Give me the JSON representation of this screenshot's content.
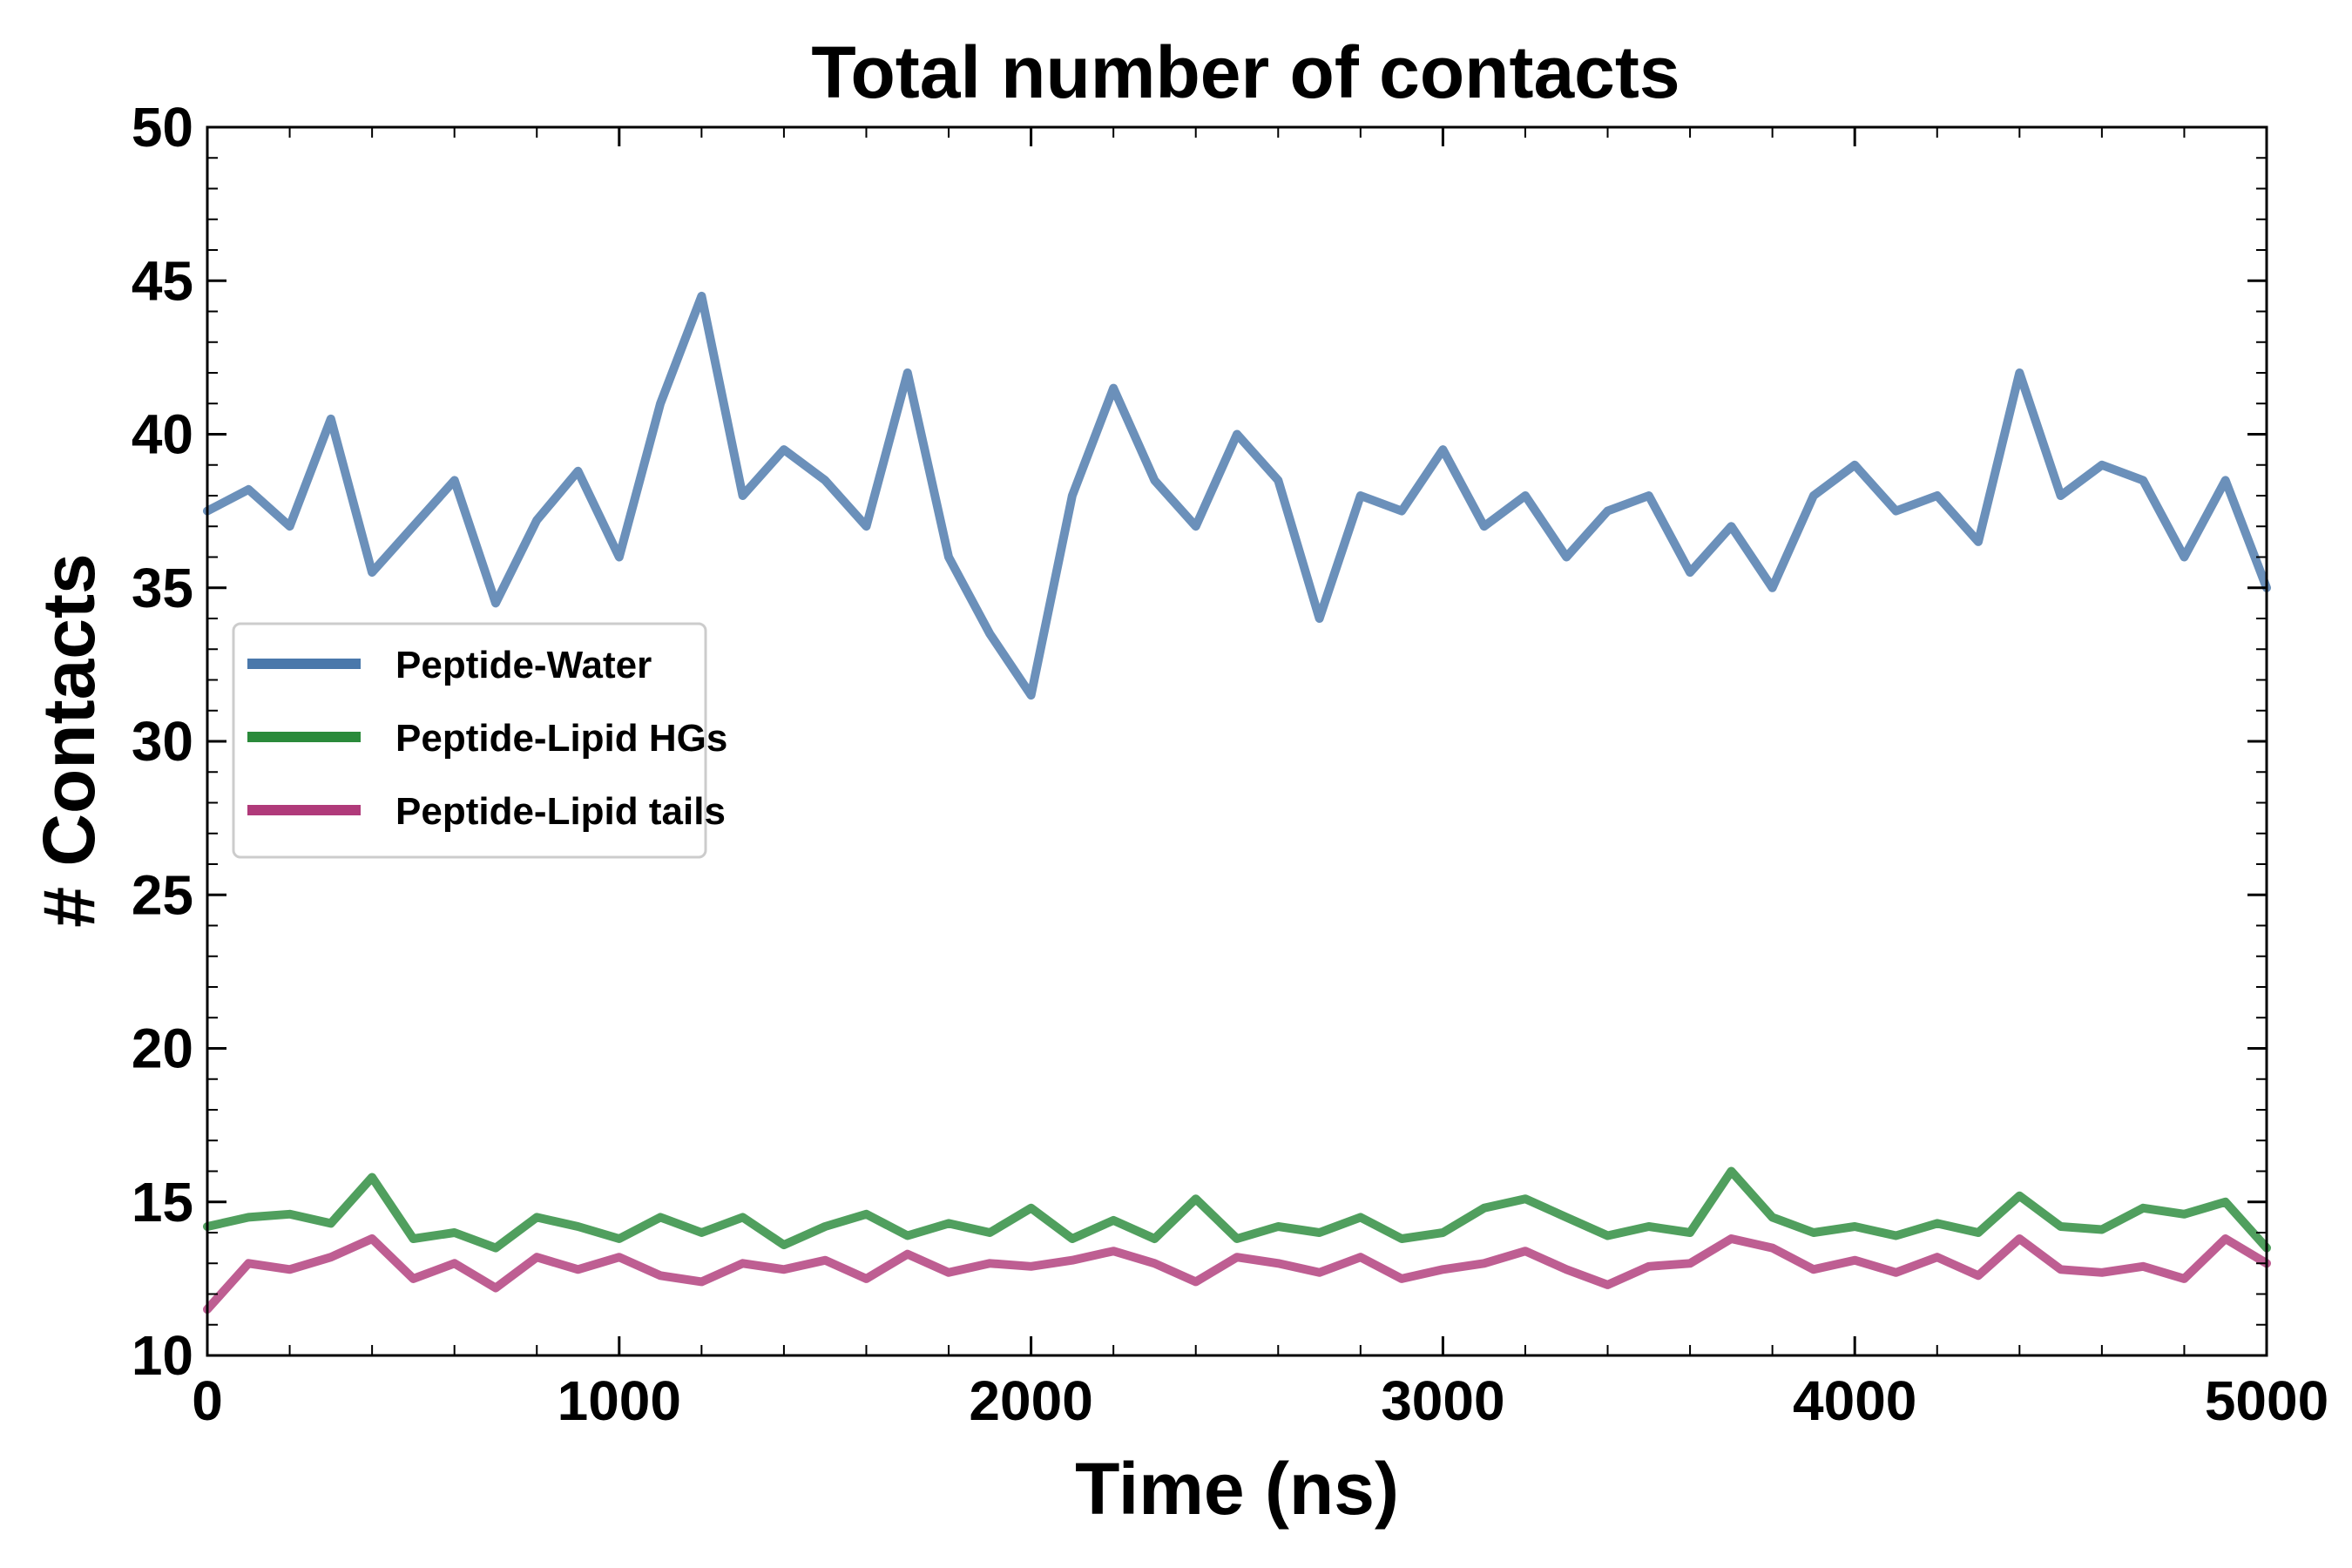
{
  "chart_data": {
    "type": "line",
    "title": "Total number of contacts",
    "xlabel": "Time (ns)",
    "ylabel": "# Contacts",
    "xlim": [
      0,
      5000
    ],
    "ylim": [
      10,
      50
    ],
    "x_ticks": [
      0,
      1000,
      2000,
      3000,
      4000,
      5000
    ],
    "y_ticks": [
      10,
      15,
      20,
      25,
      30,
      35,
      40,
      45,
      50
    ],
    "legend_position": "center-left",
    "x": [
      0,
      100,
      200,
      300,
      400,
      500,
      600,
      700,
      800,
      900,
      1000,
      1100,
      1200,
      1300,
      1400,
      1500,
      1600,
      1700,
      1800,
      1900,
      2000,
      2100,
      2200,
      2300,
      2400,
      2500,
      2600,
      2700,
      2800,
      2900,
      3000,
      3100,
      3200,
      3300,
      3400,
      3500,
      3600,
      3700,
      3800,
      3900,
      4000,
      4100,
      4200,
      4300,
      4400,
      4500,
      4600,
      4700,
      4800,
      4900,
      5000
    ],
    "series": [
      {
        "name": "Peptide-Water",
        "color": "#4a78ab",
        "values": [
          37.5,
          38.2,
          37.0,
          40.5,
          35.5,
          37.0,
          38.5,
          34.5,
          37.2,
          38.8,
          36.0,
          41.0,
          44.5,
          38.0,
          39.5,
          38.5,
          37.0,
          42.0,
          36.0,
          33.5,
          31.5,
          38.0,
          41.5,
          38.5,
          37.0,
          40.0,
          38.5,
          34.0,
          38.0,
          37.5,
          39.5,
          37.0,
          38.0,
          36.0,
          37.5,
          38.0,
          35.5,
          37.0,
          35.0,
          38.0,
          39.0,
          37.5,
          38.0,
          36.5,
          42.0,
          38.0,
          39.0,
          38.5,
          36.0,
          38.5,
          35.0
        ]
      },
      {
        "name": "Peptide-Lipid HGs",
        "color": "#2a8a3a",
        "values": [
          14.2,
          14.5,
          14.6,
          14.3,
          15.8,
          13.8,
          14.0,
          13.5,
          14.5,
          14.2,
          13.8,
          14.5,
          14.0,
          14.5,
          13.6,
          14.2,
          14.6,
          13.9,
          14.3,
          14.0,
          14.8,
          13.8,
          14.4,
          13.8,
          15.1,
          13.8,
          14.2,
          14.0,
          14.5,
          13.8,
          14.0,
          14.8,
          15.1,
          14.5,
          13.9,
          14.2,
          14.0,
          16.0,
          14.5,
          14.0,
          14.2,
          13.9,
          14.3,
          14.0,
          15.2,
          14.2,
          14.1,
          14.8,
          14.6,
          15.0,
          13.5
        ]
      },
      {
        "name": "Peptide-Lipid tails",
        "color": "#b03a7a",
        "values": [
          11.5,
          13.0,
          12.8,
          13.2,
          13.8,
          12.5,
          13.0,
          12.2,
          13.2,
          12.8,
          13.2,
          12.6,
          12.4,
          13.0,
          12.8,
          13.1,
          12.5,
          13.3,
          12.7,
          13.0,
          12.9,
          13.1,
          13.4,
          13.0,
          12.4,
          13.2,
          13.0,
          12.7,
          13.2,
          12.5,
          12.8,
          13.0,
          13.4,
          12.8,
          12.3,
          12.9,
          13.0,
          13.8,
          13.5,
          12.8,
          13.1,
          12.7,
          13.2,
          12.6,
          13.8,
          12.8,
          12.7,
          12.9,
          12.5,
          13.8,
          13.0
        ]
      }
    ]
  }
}
